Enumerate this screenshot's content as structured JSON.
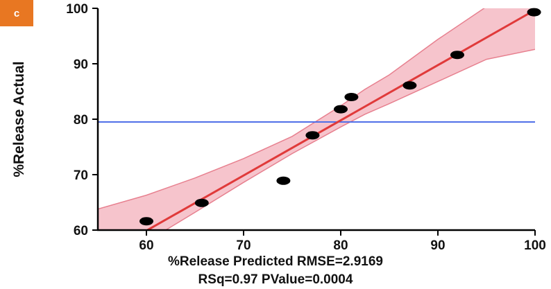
{
  "panel_label": "c",
  "chart_data": {
    "type": "scatter",
    "title": "",
    "xlabel": "%Release Predicted RMSE=2.9169",
    "ylabel": "%Release Actual",
    "stats_text": "RSq=0.97 PValue=0.0004",
    "xlim": [
      55,
      100
    ],
    "ylim": [
      60,
      100
    ],
    "xticks": [
      60,
      70,
      80,
      90,
      100
    ],
    "yticks": [
      60,
      70,
      80,
      90,
      100
    ],
    "points": [
      {
        "x": 60.0,
        "y": 61.6
      },
      {
        "x": 65.7,
        "y": 64.9
      },
      {
        "x": 74.1,
        "y": 68.9
      },
      {
        "x": 77.1,
        "y": 77.1
      },
      {
        "x": 80.0,
        "y": 81.8
      },
      {
        "x": 81.1,
        "y": 84.0
      },
      {
        "x": 87.1,
        "y": 86.1
      },
      {
        "x": 92.0,
        "y": 91.6
      },
      {
        "x": 99.9,
        "y": 99.3
      }
    ],
    "fit_line": {
      "x": [
        60,
        100
      ],
      "y": [
        59.9,
        99.7
      ]
    },
    "confidence_band": {
      "x": [
        55,
        60,
        65,
        70,
        75,
        80,
        82.5,
        85,
        90,
        95,
        100
      ],
      "lower": [
        52.2,
        57.9,
        63.2,
        68.6,
        73.8,
        78.6,
        80.9,
        82.8,
        86.8,
        90.8,
        92.6
      ],
      "upper": [
        63.8,
        66.3,
        69.4,
        72.9,
        76.9,
        82.4,
        85.4,
        88.0,
        94.4,
        100.3,
        105
      ]
    },
    "mean_line_y": 79.5,
    "grid": false,
    "legend": "none",
    "colors": {
      "points": "#000000",
      "fit_line": "#e03a3a",
      "band_fill": "#f6c4cc",
      "band_edge": "#e7808f",
      "mean_line": "#4f6fe8",
      "badge": "#e87722"
    }
  }
}
